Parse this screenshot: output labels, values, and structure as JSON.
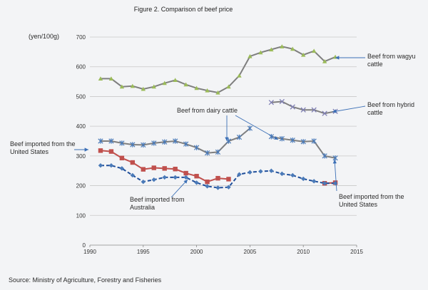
{
  "chart_data": {
    "type": "line",
    "title": "Figure 2. Comparison  of beef price",
    "ylabel": "(yen/100g)",
    "xlabel": "",
    "source": "Source: Ministry of Agriculture, Forestry and Fisheries",
    "xlim": [
      1990,
      2015
    ],
    "ylim": [
      0,
      700
    ],
    "xticks": [
      1990,
      1995,
      2000,
      2005,
      2010,
      2015
    ],
    "yticks": [
      0,
      100,
      200,
      300,
      400,
      500,
      600,
      700
    ],
    "grid": "horizontal",
    "series": [
      {
        "name": "Beef from wagyu cattle",
        "color": "#7f7f7f",
        "marker": "triangle",
        "marker_color": "#9bbb59",
        "dash": false,
        "x": [
          1991,
          1992,
          1993,
          1994,
          1995,
          1996,
          1997,
          1998,
          1999,
          2000,
          2001,
          2002,
          2003,
          2004,
          2005,
          2006,
          2007,
          2008,
          2009,
          2010,
          2011,
          2012,
          2013
        ],
        "y": [
          560,
          560,
          533,
          535,
          525,
          533,
          545,
          555,
          540,
          528,
          520,
          513,
          533,
          570,
          635,
          648,
          658,
          668,
          660,
          640,
          653,
          618,
          633
        ]
      },
      {
        "name": "Beef from hybrid cattle",
        "color": "#7f7f7f",
        "marker": "x",
        "marker_color": "#7f7fb4",
        "dash": false,
        "x": [
          2007,
          2008,
          2009,
          2010,
          2011,
          2012,
          2013
        ],
        "y": [
          480,
          483,
          465,
          455,
          455,
          443,
          450
        ]
      },
      {
        "name": "Beef from dairy cattle",
        "color": "#7f7f7f",
        "marker": "star",
        "marker_color": "#4a7ab8",
        "dash": false,
        "x": [
          1991,
          1992,
          1993,
          1994,
          1995,
          1996,
          1997,
          1998,
          1999,
          2000,
          2001,
          2002,
          2003,
          2004,
          2005,
          null,
          2007,
          2008,
          2009,
          2010,
          2011,
          2012,
          2013
        ],
        "y": [
          350,
          350,
          343,
          338,
          337,
          343,
          347,
          350,
          340,
          328,
          310,
          313,
          350,
          363,
          393,
          null,
          365,
          358,
          353,
          348,
          350,
          300,
          293
        ]
      },
      {
        "name": "Beef imported from the United States",
        "color": "#c0504d",
        "marker": "square",
        "marker_color": "#c0504d",
        "dash": false,
        "x": [
          1991,
          1992,
          1993,
          1994,
          1995,
          1996,
          1997,
          1998,
          1999,
          2000,
          2001,
          2002,
          2003,
          null,
          2012,
          2013
        ],
        "y": [
          318,
          315,
          293,
          278,
          255,
          260,
          258,
          256,
          242,
          232,
          213,
          225,
          222,
          null,
          208,
          210
        ]
      },
      {
        "name": "Beef imported from Australia",
        "color": "#1f4e9a",
        "marker": "diamond",
        "marker_color": "#4a7ab8",
        "dash": true,
        "x": [
          1991,
          1992,
          1993,
          1994,
          1995,
          1996,
          1997,
          1998,
          1999,
          2000,
          2001,
          2002,
          2003,
          2004,
          2005,
          2006,
          2007,
          2008,
          2009,
          2010,
          2011,
          2012,
          2013
        ],
        "y": [
          268,
          268,
          258,
          235,
          213,
          220,
          228,
          228,
          228,
          210,
          198,
          193,
          195,
          238,
          245,
          248,
          250,
          240,
          235,
          223,
          215,
          208,
          208
        ]
      }
    ],
    "annotations": [
      {
        "text_lines": [
          "Beef from wagyu",
          "cattle"
        ]
      },
      {
        "text_lines": [
          "Beef from hybrid",
          "cattle"
        ]
      },
      {
        "text_lines": [
          "Beef from dairy cattle"
        ]
      },
      {
        "text_lines": [
          "Beef imported from the",
          "United States"
        ]
      },
      {
        "text_lines": [
          "Beef imported from",
          "Australia"
        ]
      },
      {
        "text_lines": [
          "Beef imported from the",
          "United States"
        ]
      }
    ]
  }
}
